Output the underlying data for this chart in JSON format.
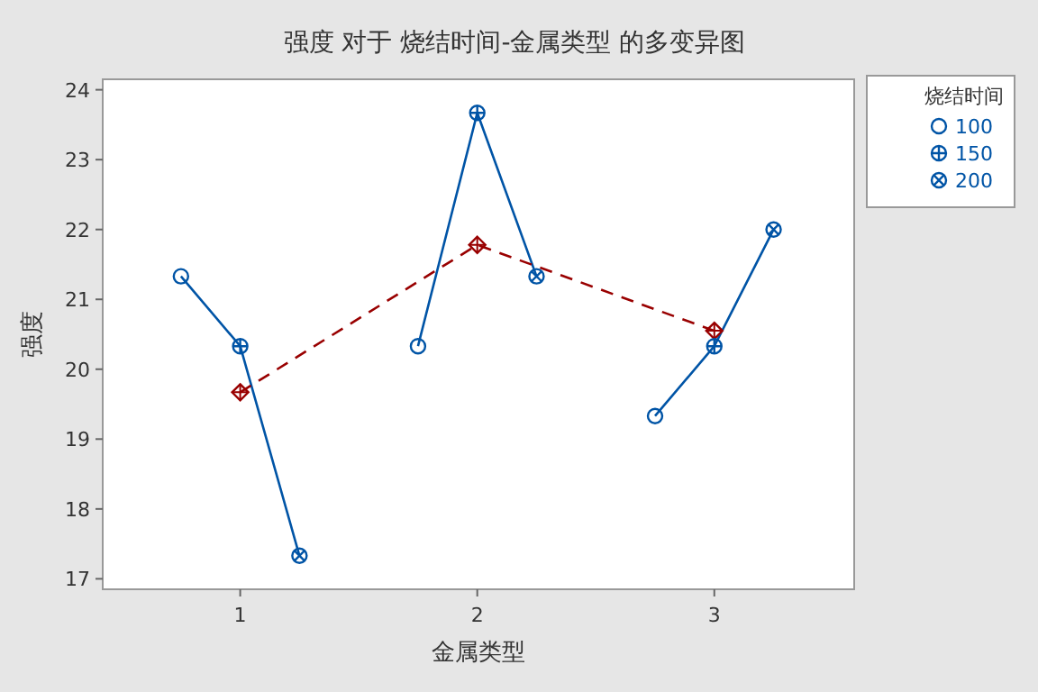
{
  "chart_data": {
    "type": "scatter",
    "title": "强度 对于 烧结时间-金属类型 的多变异图",
    "xlabel": "金属类型",
    "ylabel": "强度",
    "legend_title": "烧结时间",
    "legend": "right",
    "grid": false,
    "xlim": [
      0.42,
      3.59
    ],
    "xticks": [
      1,
      2,
      3
    ],
    "ylim": [
      16.85,
      24.15
    ],
    "yticks": [
      17,
      18,
      19,
      20,
      21,
      22,
      23,
      24
    ],
    "series": [
      {
        "type": "line",
        "color": "#0054a6",
        "x": [
          0.75,
          1,
          1.25
        ],
        "values": [
          21.33,
          20.33,
          17.33
        ]
      },
      {
        "type": "line",
        "color": "#0054a6",
        "x": [
          1.75,
          2,
          2.25
        ],
        "values": [
          20.33,
          23.67,
          21.33
        ]
      },
      {
        "type": "line",
        "color": "#0054a6",
        "x": [
          2.75,
          3,
          3.25
        ],
        "values": [
          19.33,
          20.33,
          22.0
        ]
      },
      {
        "type": "line",
        "color": "#990000",
        "marker": "diamond",
        "line_style": "dashed",
        "x": [
          1,
          2,
          3
        ],
        "values": [
          19.67,
          21.78,
          20.55
        ]
      },
      {
        "name": "100",
        "color": "#0054a6",
        "marker": "circle",
        "x": [
          0.75,
          1.75,
          2.75
        ],
        "values": [
          21.33,
          20.33,
          19.33
        ]
      },
      {
        "name": "150",
        "color": "#0054a6",
        "marker": "circle-plus",
        "x": [
          1,
          2,
          3
        ],
        "values": [
          20.33,
          23.67,
          20.33
        ]
      },
      {
        "name": "200",
        "color": "#0054a6",
        "marker": "circle-cross",
        "x": [
          1.25,
          2.25,
          3.25
        ],
        "values": [
          17.33,
          21.33,
          22.0
        ]
      }
    ]
  }
}
